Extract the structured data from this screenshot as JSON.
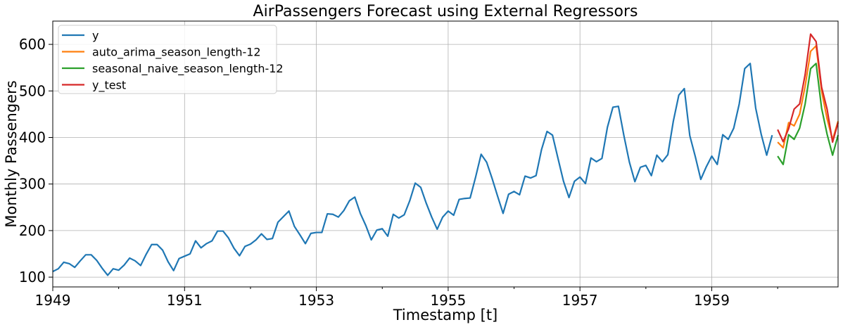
{
  "chart_data": {
    "type": "line",
    "title": "AirPassengers Forecast using External Regressors",
    "xlabel": "Timestamp [t]",
    "ylabel": "Monthly Passengers",
    "xlim": [
      1949.0,
      1960.9167
    ],
    "ylim": [
      79,
      650
    ],
    "x_ticks": [
      1949,
      1951,
      1953,
      1955,
      1957,
      1959
    ],
    "x_tick_labels": [
      "1949",
      "1951",
      "1953",
      "1955",
      "1957",
      "1959"
    ],
    "y_ticks": [
      100,
      200,
      300,
      400,
      500,
      600
    ],
    "y_tick_labels": [
      "100",
      "200",
      "300",
      "400",
      "500",
      "600"
    ],
    "grid": true,
    "legend_position": "top-left",
    "series": [
      {
        "name": "y",
        "color": "#1f77b4",
        "start": 1949.0,
        "step": 0.0833333,
        "values": [
          112,
          118,
          132,
          129,
          121,
          135,
          148,
          148,
          136,
          119,
          104,
          118,
          115,
          126,
          141,
          135,
          125,
          149,
          170,
          170,
          158,
          133,
          114,
          140,
          145,
          150,
          178,
          163,
          172,
          178,
          199,
          199,
          184,
          162,
          146,
          166,
          171,
          180,
          193,
          181,
          183,
          218,
          230,
          242,
          209,
          191,
          172,
          194,
          196,
          196,
          236,
          235,
          229,
          243,
          264,
          272,
          237,
          211,
          180,
          201,
          204,
          188,
          235,
          227,
          234,
          264,
          302,
          293,
          259,
          229,
          203,
          229,
          242,
          233,
          267,
          269,
          270,
          315,
          364,
          347,
          312,
          274,
          237,
          278,
          284,
          277,
          317,
          313,
          318,
          374,
          413,
          405,
          355,
          306,
          271,
          306,
          315,
          301,
          356,
          348,
          355,
          422,
          465,
          467,
          404,
          347,
          305,
          336,
          340,
          318,
          362,
          348,
          363,
          435,
          491,
          505,
          404,
          359,
          310,
          337,
          360,
          342,
          406,
          396,
          420,
          472,
          548,
          559,
          463,
          407,
          362,
          405
        ]
      },
      {
        "name": "auto_arima_season_length-12",
        "color": "#ff7f0e",
        "start": 1960.0,
        "step": 0.0833333,
        "values": [
          390,
          378,
          432,
          425,
          450,
          510,
          585,
          597,
          500,
          440,
          395,
          435
        ]
      },
      {
        "name": "seasonal_naive_season_length-12",
        "color": "#2ca02c",
        "start": 1960.0,
        "step": 0.0833333,
        "values": [
          360,
          342,
          406,
          396,
          420,
          472,
          548,
          559,
          463,
          407,
          362,
          405
        ]
      },
      {
        "name": "y_test",
        "color": "#d62728",
        "start": 1960.0,
        "step": 0.0833333,
        "values": [
          417,
          391,
          419,
          461,
          472,
          535,
          622,
          606,
          508,
          461,
          390,
          432
        ]
      }
    ]
  }
}
